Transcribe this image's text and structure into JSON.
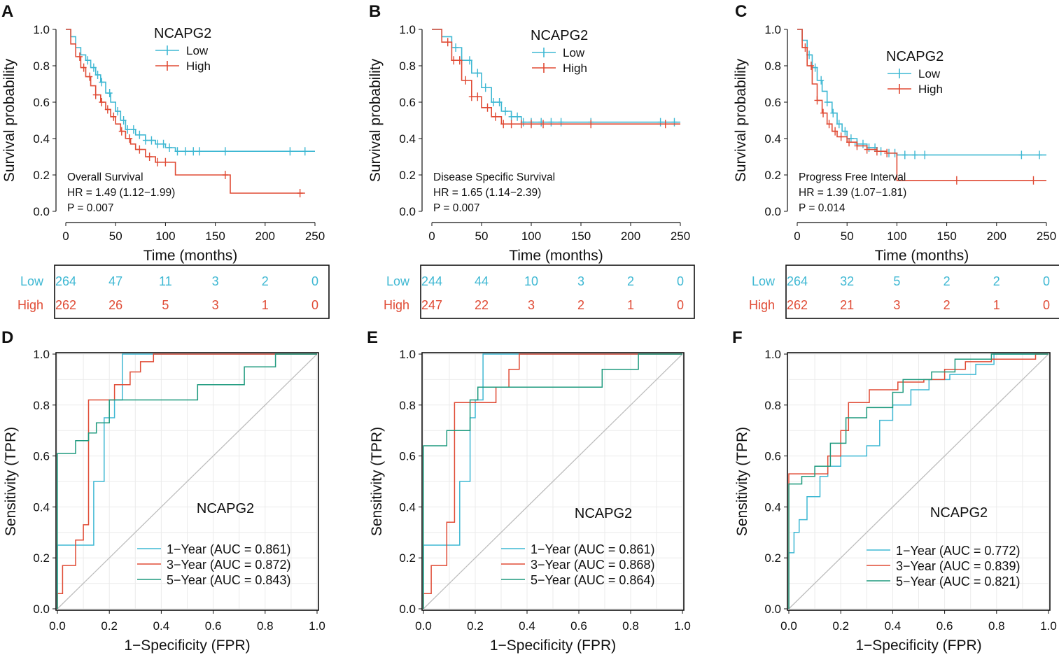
{
  "colors": {
    "low": "#3fb8d3",
    "high": "#e04b35",
    "y1": "#3fb8d3",
    "y3": "#e04b35",
    "y5": "#1e9a7e",
    "diag": "#bdbdbd",
    "grid": "#ebebeb"
  },
  "chart_data": [
    {
      "panel_label": "A",
      "type": "line",
      "subtype": "kaplan-meier",
      "title": "NCAPG2",
      "xlabel": "Time (months)",
      "ylabel": "Survival probability",
      "xlim": [
        0,
        250
      ],
      "ylim": [
        0,
        1
      ],
      "xticks": [
        "0",
        "50",
        "100",
        "150",
        "200",
        "250"
      ],
      "yticks": [
        "0.0",
        "0.2",
        "0.4",
        "0.6",
        "0.8",
        "1.0"
      ],
      "annotation": [
        "Overall Survival",
        "HR = 1.49 (1.12−1.99)",
        "P = 0.007"
      ],
      "series": [
        {
          "name": "Low",
          "color_key": "low",
          "x": [
            0,
            5,
            10,
            15,
            20,
            25,
            30,
            35,
            40,
            45,
            50,
            55,
            60,
            70,
            80,
            90,
            100,
            110,
            250
          ],
          "y": [
            1.0,
            0.96,
            0.9,
            0.86,
            0.83,
            0.79,
            0.75,
            0.71,
            0.65,
            0.6,
            0.55,
            0.5,
            0.45,
            0.42,
            0.39,
            0.37,
            0.35,
            0.33,
            0.33
          ],
          "censor_x": [
            22,
            28,
            32,
            36,
            44,
            52,
            58,
            62,
            68,
            74,
            80,
            86,
            92,
            98,
            104,
            112,
            120,
            128,
            134,
            160,
            225,
            240
          ]
        },
        {
          "name": "High",
          "color_key": "high",
          "x": [
            0,
            5,
            10,
            15,
            20,
            25,
            30,
            35,
            40,
            45,
            50,
            55,
            60,
            65,
            70,
            80,
            90,
            110,
            165,
            240
          ],
          "y": [
            1.0,
            0.92,
            0.85,
            0.79,
            0.74,
            0.69,
            0.64,
            0.6,
            0.56,
            0.52,
            0.48,
            0.44,
            0.4,
            0.37,
            0.34,
            0.3,
            0.27,
            0.2,
            0.1,
            0.1
          ],
          "censor_x": [
            14,
            18,
            24,
            30,
            36,
            42,
            48,
            56,
            64,
            74,
            84,
            92,
            100,
            160,
            235
          ]
        }
      ],
      "risk_table": {
        "times": [
          0,
          50,
          100,
          150,
          200,
          250
        ],
        "rows": [
          {
            "name": "Low",
            "color_key": "low",
            "values": [
              "264",
              "47",
              "11",
              "3",
              "2",
              "0"
            ]
          },
          {
            "name": "High",
            "color_key": "high",
            "values": [
              "262",
              "26",
              "5",
              "3",
              "1",
              "0"
            ]
          }
        ]
      }
    },
    {
      "panel_label": "B",
      "type": "line",
      "subtype": "kaplan-meier",
      "title": "NCAPG2",
      "xlabel": "Time (months)",
      "ylabel": "Survival probability",
      "xlim": [
        0,
        250
      ],
      "ylim": [
        0,
        1
      ],
      "xticks": [
        "0",
        "50",
        "100",
        "150",
        "200",
        "250"
      ],
      "yticks": [
        "0.0",
        "0.2",
        "0.4",
        "0.6",
        "0.8",
        "1.0"
      ],
      "annotation": [
        "Disease Specific Survival",
        "HR = 1.65 (1.14−2.39)",
        "P = 0.007"
      ],
      "series": [
        {
          "name": "Low",
          "color_key": "low",
          "x": [
            0,
            10,
            20,
            30,
            40,
            50,
            60,
            70,
            80,
            90,
            250
          ],
          "y": [
            1.0,
            0.96,
            0.9,
            0.83,
            0.76,
            0.68,
            0.6,
            0.55,
            0.52,
            0.49,
            0.49
          ],
          "censor_x": [
            24,
            30,
            38,
            46,
            54,
            62,
            68,
            74,
            80,
            86,
            92,
            100,
            110,
            120,
            130,
            160,
            230,
            244
          ]
        },
        {
          "name": "High",
          "color_key": "high",
          "x": [
            0,
            10,
            20,
            30,
            40,
            50,
            60,
            70,
            250
          ],
          "y": [
            1.0,
            0.93,
            0.83,
            0.72,
            0.63,
            0.57,
            0.52,
            0.48,
            0.48
          ],
          "censor_x": [
            16,
            22,
            28,
            34,
            40,
            46,
            56,
            64,
            72,
            80,
            90,
            100,
            112,
            160,
            235
          ]
        }
      ],
      "risk_table": {
        "times": [
          0,
          50,
          100,
          150,
          200,
          250
        ],
        "rows": [
          {
            "name": "Low",
            "color_key": "low",
            "values": [
              "244",
              "44",
              "10",
              "3",
              "2",
              "0"
            ]
          },
          {
            "name": "High",
            "color_key": "high",
            "values": [
              "247",
              "22",
              "3",
              "2",
              "1",
              "0"
            ]
          }
        ]
      }
    },
    {
      "panel_label": "C",
      "type": "line",
      "subtype": "kaplan-meier",
      "title": "NCAPG2",
      "xlabel": "Time (months)",
      "ylabel": "Survival probability",
      "xlim": [
        0,
        250
      ],
      "ylim": [
        0,
        1
      ],
      "xticks": [
        "0",
        "50",
        "100",
        "150",
        "200",
        "250"
      ],
      "yticks": [
        "0.0",
        "0.2",
        "0.4",
        "0.6",
        "0.8",
        "1.0"
      ],
      "annotation": [
        "Progress Free Interval",
        "HR = 1.39 (1.07−1.81)",
        "P = 0.014"
      ],
      "series": [
        {
          "name": "Low",
          "color_key": "low",
          "x": [
            0,
            5,
            10,
            15,
            20,
            25,
            30,
            35,
            40,
            45,
            50,
            60,
            70,
            80,
            90,
            100,
            250
          ],
          "y": [
            1.0,
            0.94,
            0.86,
            0.79,
            0.72,
            0.66,
            0.6,
            0.54,
            0.48,
            0.44,
            0.4,
            0.37,
            0.35,
            0.33,
            0.32,
            0.31,
            0.31
          ],
          "censor_x": [
            12,
            18,
            24,
            30,
            36,
            42,
            48,
            54,
            60,
            66,
            72,
            78,
            84,
            92,
            98,
            108,
            118,
            128,
            225,
            243
          ]
        },
        {
          "name": "High",
          "color_key": "high",
          "x": [
            0,
            5,
            10,
            15,
            20,
            25,
            30,
            35,
            40,
            50,
            60,
            70,
            80,
            90,
            100,
            250
          ],
          "y": [
            1.0,
            0.9,
            0.8,
            0.7,
            0.61,
            0.54,
            0.48,
            0.44,
            0.41,
            0.38,
            0.36,
            0.34,
            0.33,
            0.32,
            0.17,
            0.17
          ],
          "censor_x": [
            8,
            14,
            20,
            26,
            32,
            38,
            44,
            52,
            60,
            70,
            80,
            90,
            160,
            237
          ]
        }
      ],
      "risk_table": {
        "times": [
          0,
          50,
          100,
          150,
          200,
          250
        ],
        "rows": [
          {
            "name": "Low",
            "color_key": "low",
            "values": [
              "264",
              "32",
              "5",
              "2",
              "2",
              "0"
            ]
          },
          {
            "name": "High",
            "color_key": "high",
            "values": [
              "262",
              "21",
              "3",
              "2",
              "1",
              "0"
            ]
          }
        ]
      }
    },
    {
      "panel_label": "D",
      "type": "line",
      "subtype": "roc",
      "title": "NCAPG2",
      "xlabel": "1−Specificity (FPR)",
      "ylabel": "Sensitivity (TPR)",
      "xlim": [
        0,
        1
      ],
      "ylim": [
        0,
        1
      ],
      "xticks": [
        "0.0",
        "0.2",
        "0.4",
        "0.6",
        "0.8",
        "1.0"
      ],
      "yticks": [
        "0.0",
        "0.2",
        "0.4",
        "0.6",
        "0.8",
        "1.0"
      ],
      "series": [
        {
          "name": "1−Year (AUC = 0.861)",
          "color_key": "y1",
          "x": [
            0,
            0,
            0.14,
            0.14,
            0.18,
            0.18,
            0.22,
            0.22,
            0.25,
            0.25,
            1.0
          ],
          "y": [
            0,
            0.25,
            0.25,
            0.5,
            0.5,
            0.75,
            0.75,
            0.82,
            0.82,
            1.0,
            1.0
          ]
        },
        {
          "name": "3−Year (AUC = 0.872)",
          "color_key": "y3",
          "x": [
            0,
            0,
            0.02,
            0.02,
            0.07,
            0.07,
            0.1,
            0.1,
            0.12,
            0.12,
            0.22,
            0.22,
            0.28,
            0.28,
            0.32,
            0.32,
            0.37,
            0.37,
            1.0
          ],
          "y": [
            0,
            0.06,
            0.06,
            0.17,
            0.17,
            0.27,
            0.27,
            0.33,
            0.33,
            0.82,
            0.82,
            0.88,
            0.88,
            0.93,
            0.93,
            0.97,
            0.97,
            1.0,
            1.0
          ]
        },
        {
          "name": "5−Year (AUC = 0.843)",
          "color_key": "y5",
          "x": [
            0,
            0,
            0.07,
            0.07,
            0.12,
            0.12,
            0.15,
            0.15,
            0.2,
            0.2,
            0.54,
            0.54,
            0.72,
            0.72,
            0.84,
            0.84,
            1.0
          ],
          "y": [
            0,
            0.61,
            0.61,
            0.66,
            0.66,
            0.69,
            0.69,
            0.73,
            0.73,
            0.82,
            0.82,
            0.88,
            0.88,
            0.95,
            0.95,
            1.0,
            1.0
          ]
        }
      ]
    },
    {
      "panel_label": "E",
      "type": "line",
      "subtype": "roc",
      "title": "NCAPG2",
      "xlabel": "1−Specificity (FPR)",
      "ylabel": "Sensitivity (TPR)",
      "xlim": [
        0,
        1
      ],
      "ylim": [
        0,
        1
      ],
      "xticks": [
        "0.0",
        "0.2",
        "0.4",
        "0.6",
        "0.8",
        "1.0"
      ],
      "yticks": [
        "0.0",
        "0.2",
        "0.4",
        "0.6",
        "0.8",
        "1.0"
      ],
      "series": [
        {
          "name": "1−Year (AUC = 0.861)",
          "color_key": "y1",
          "x": [
            0,
            0,
            0.14,
            0.14,
            0.18,
            0.18,
            0.2,
            0.2,
            0.23,
            0.23,
            1.0
          ],
          "y": [
            0,
            0.25,
            0.25,
            0.5,
            0.5,
            0.75,
            0.75,
            0.82,
            0.82,
            1.0,
            1.0
          ]
        },
        {
          "name": "3−Year (AUC = 0.868)",
          "color_key": "y3",
          "x": [
            0,
            0,
            0.03,
            0.03,
            0.09,
            0.09,
            0.12,
            0.12,
            0.28,
            0.28,
            0.33,
            0.33,
            0.37,
            0.37,
            1.0
          ],
          "y": [
            0,
            0.06,
            0.06,
            0.17,
            0.17,
            0.34,
            0.34,
            0.81,
            0.81,
            0.87,
            0.87,
            0.94,
            0.94,
            1.0,
            1.0
          ]
        },
        {
          "name": "5−Year (AUC = 0.864)",
          "color_key": "y5",
          "x": [
            0,
            0,
            0.09,
            0.09,
            0.18,
            0.18,
            0.21,
            0.21,
            0.69,
            0.69,
            0.83,
            0.83,
            1.0
          ],
          "y": [
            0,
            0.64,
            0.64,
            0.7,
            0.7,
            0.82,
            0.82,
            0.87,
            0.87,
            0.94,
            0.94,
            1.0,
            1.0
          ]
        }
      ]
    },
    {
      "panel_label": "F",
      "type": "line",
      "subtype": "roc",
      "title": "NCAPG2",
      "xlabel": "1−Specificity (FPR)",
      "ylabel": "Sensitivity (TPR)",
      "xlim": [
        0,
        1
      ],
      "ylim": [
        0,
        1
      ],
      "xticks": [
        "0.0",
        "0.2",
        "0.4",
        "0.6",
        "0.8",
        "1.0"
      ],
      "yticks": [
        "0.0",
        "0.2",
        "0.4",
        "0.6",
        "0.8",
        "1.0"
      ],
      "series": [
        {
          "name": "1−Year (AUC = 0.772)",
          "color_key": "y1",
          "x": [
            0,
            0,
            0.02,
            0.02,
            0.04,
            0.04,
            0.07,
            0.07,
            0.12,
            0.12,
            0.15,
            0.15,
            0.2,
            0.2,
            0.3,
            0.3,
            0.35,
            0.35,
            0.4,
            0.4,
            0.47,
            0.47,
            0.54,
            0.54,
            0.62,
            0.62,
            0.72,
            0.72,
            0.79,
            0.79,
            1.0
          ],
          "y": [
            0,
            0.22,
            0.22,
            0.3,
            0.3,
            0.35,
            0.35,
            0.44,
            0.44,
            0.52,
            0.52,
            0.56,
            0.56,
            0.6,
            0.6,
            0.64,
            0.64,
            0.74,
            0.74,
            0.8,
            0.8,
            0.86,
            0.86,
            0.9,
            0.9,
            0.92,
            0.92,
            0.96,
            0.96,
            1.0,
            1.0
          ]
        },
        {
          "name": "3−Year (AUC = 0.839)",
          "color_key": "y3",
          "x": [
            0,
            0,
            0.15,
            0.15,
            0.2,
            0.2,
            0.23,
            0.23,
            0.31,
            0.31,
            0.42,
            0.42,
            0.52,
            0.52,
            0.6,
            0.6,
            0.68,
            0.68,
            0.78,
            0.78,
            0.95,
            0.95,
            1.0
          ],
          "y": [
            0,
            0.53,
            0.53,
            0.6,
            0.6,
            0.7,
            0.7,
            0.81,
            0.81,
            0.86,
            0.86,
            0.89,
            0.89,
            0.9,
            0.9,
            0.94,
            0.94,
            0.97,
            0.97,
            0.98,
            0.98,
            1.0,
            1.0
          ]
        },
        {
          "name": "5−Year (AUC = 0.821)",
          "color_key": "y5",
          "x": [
            0,
            0,
            0.05,
            0.05,
            0.1,
            0.1,
            0.16,
            0.16,
            0.22,
            0.22,
            0.3,
            0.3,
            0.4,
            0.4,
            0.44,
            0.44,
            0.55,
            0.55,
            0.64,
            0.64,
            0.78,
            0.78,
            1.0
          ],
          "y": [
            0,
            0.49,
            0.49,
            0.52,
            0.52,
            0.56,
            0.56,
            0.65,
            0.65,
            0.75,
            0.75,
            0.79,
            0.79,
            0.85,
            0.85,
            0.9,
            0.9,
            0.93,
            0.93,
            0.98,
            0.98,
            1.0,
            1.0
          ]
        }
      ]
    }
  ]
}
